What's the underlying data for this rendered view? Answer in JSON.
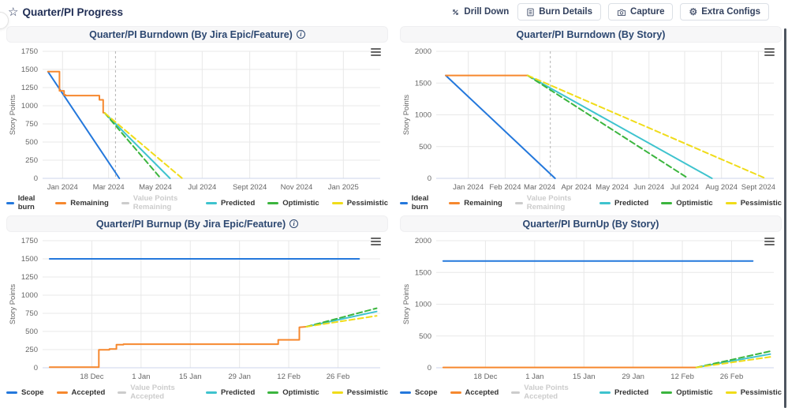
{
  "toolbar": {
    "title": "Quarter/PI Progress",
    "buttons": [
      {
        "label": "Drill Down",
        "icon": "drill-down-icon",
        "bordered": false
      },
      {
        "label": "Burn Details",
        "icon": "burn-details-icon",
        "bordered": true
      },
      {
        "label": "Capture",
        "icon": "camera-icon",
        "bordered": true
      },
      {
        "label": "Extra Configs",
        "icon": "gear-icon",
        "bordered": true
      }
    ]
  },
  "colors": {
    "ideal": "#2478DC",
    "actual": "#F6882E",
    "value_points_disabled": "#CCCCCC",
    "predicted": "#3EC3CE",
    "optimistic": "#3BB53E",
    "pessimistic": "#F0DC19",
    "grid": "#E8E8E8",
    "axis_line": "#CCD6EB",
    "tick_text": "#666666",
    "plotline": "#B3B3B3"
  },
  "chart_data": [
    {
      "type": "line",
      "title": "Quarter/PI Burndown (By Jira Epic/Feature)",
      "has_info": true,
      "ylabel": "Story Points",
      "y_max": 1750,
      "y_ticks": [
        0,
        250,
        500,
        750,
        1000,
        1250,
        1500,
        1750
      ],
      "x_unit": "days since 2023-12-01",
      "x_min": 5,
      "x_max": 445,
      "plotline_x": 100,
      "x_ticks": [
        {
          "x": 31,
          "label": "Jan 2024"
        },
        {
          "x": 91,
          "label": "Mar 2024"
        },
        {
          "x": 152,
          "label": "May 2024"
        },
        {
          "x": 213,
          "label": "Jul 2024"
        },
        {
          "x": 275,
          "label": "Sept 2024"
        },
        {
          "x": 336,
          "label": "Nov 2024"
        },
        {
          "x": 397,
          "label": "Jan 2025"
        }
      ],
      "series": [
        {
          "name": "Ideal burn",
          "color": "#2478DC",
          "dash": "solid",
          "points": [
            [
              12,
              1470
            ],
            [
              105,
              0
            ]
          ]
        },
        {
          "name": "Remaining",
          "color": "#F6882E",
          "dash": "solid",
          "points": [
            [
              12,
              1470
            ],
            [
              27,
              1470
            ],
            [
              27,
              1205
            ],
            [
              33,
              1205
            ],
            [
              33,
              1150
            ],
            [
              35,
              1150
            ],
            [
              35,
              1140
            ],
            [
              79,
              1140
            ],
            [
              79,
              1082
            ],
            [
              84,
              1082
            ],
            [
              84,
              905
            ],
            [
              86,
              900
            ]
          ]
        },
        {
          "name": "Value Points Remaining",
          "color": "#CCCCCC",
          "dash": "solid",
          "disabled": true,
          "points": []
        },
        {
          "name": "Predicted",
          "color": "#3EC3CE",
          "dash": "solid",
          "points": [
            [
              86,
              900
            ],
            [
              171,
              0
            ]
          ]
        },
        {
          "name": "Optimistic",
          "color": "#3BB53E",
          "dash": "dashed",
          "points": [
            [
              86,
              900
            ],
            [
              159,
              0
            ]
          ]
        },
        {
          "name": "Pessimistic",
          "color": "#F0DC19",
          "dash": "dashed",
          "points": [
            [
              86,
              900
            ],
            [
              187,
              0
            ]
          ]
        }
      ]
    },
    {
      "type": "line",
      "title": "Quarter/PI Burndown (By Story)",
      "has_info": false,
      "ylabel": "Story Points",
      "y_max": 2000,
      "y_ticks": [
        0,
        500,
        1000,
        1500,
        2000
      ],
      "x_unit": "days since 2023-12-01",
      "x_min": 4,
      "x_max": 288,
      "plotline_x": 100,
      "x_ticks": [
        {
          "x": 31,
          "label": "Jan 2024"
        },
        {
          "x": 62,
          "label": "Feb 2024"
        },
        {
          "x": 91,
          "label": "Mar 2024"
        },
        {
          "x": 122,
          "label": "Apr 2024"
        },
        {
          "x": 152,
          "label": "May 2024"
        },
        {
          "x": 183,
          "label": "Jun 2024"
        },
        {
          "x": 213,
          "label": "Jul 2024"
        },
        {
          "x": 244,
          "label": "Aug 2024"
        },
        {
          "x": 275,
          "label": "Sept 2024"
        }
      ],
      "series": [
        {
          "name": "Ideal burn",
          "color": "#2478DC",
          "dash": "solid",
          "points": [
            [
              12,
              1620
            ],
            [
              104,
              0
            ]
          ]
        },
        {
          "name": "Remaining",
          "color": "#F6882E",
          "dash": "solid",
          "points": [
            [
              12,
              1620
            ],
            [
              81,
              1620
            ]
          ]
        },
        {
          "name": "Value Points Remaining",
          "color": "#CCCCCC",
          "dash": "solid",
          "disabled": true,
          "points": []
        },
        {
          "name": "Predicted",
          "color": "#3EC3CE",
          "dash": "solid",
          "points": [
            [
              81,
              1620
            ],
            [
              236,
              0
            ]
          ]
        },
        {
          "name": "Optimistic",
          "color": "#3BB53E",
          "dash": "dashed",
          "points": [
            [
              81,
              1620
            ],
            [
              216,
              0
            ]
          ]
        },
        {
          "name": "Pessimistic",
          "color": "#F0DC19",
          "dash": "dashed",
          "points": [
            [
              81,
              1620
            ],
            [
              281,
              0
            ]
          ]
        }
      ]
    },
    {
      "type": "line",
      "title": "Quarter/PI Burnup (By Jira Epic/Feature)",
      "has_info": true,
      "ylabel": "Story Points",
      "y_max": 1750,
      "y_ticks": [
        0,
        250,
        500,
        750,
        1000,
        1250,
        1500,
        1750
      ],
      "x_unit": "days since 2023-12-01",
      "x_min": 3,
      "x_max": 99,
      "plotline_x": null,
      "x_ticks": [
        {
          "x": 17,
          "label": "18 Dec"
        },
        {
          "x": 31,
          "label": "1 Jan"
        },
        {
          "x": 45,
          "label": "15 Jan"
        },
        {
          "x": 59,
          "label": "29 Jan"
        },
        {
          "x": 73,
          "label": "12 Feb"
        },
        {
          "x": 87,
          "label": "26 Feb"
        }
      ],
      "series": [
        {
          "name": "Scope",
          "color": "#2478DC",
          "dash": "solid",
          "points": [
            [
              5,
              1500
            ],
            [
              93,
              1500
            ]
          ]
        },
        {
          "name": "Accepted",
          "color": "#F6882E",
          "dash": "solid",
          "points": [
            [
              5,
              8
            ],
            [
              19,
              8
            ],
            [
              19,
              248
            ],
            [
              22,
              248
            ],
            [
              22,
              258
            ],
            [
              24,
              258
            ],
            [
              24,
              318
            ],
            [
              26,
              318
            ],
            [
              26,
              325
            ],
            [
              70,
              325
            ],
            [
              70,
              385
            ],
            [
              76,
              385
            ],
            [
              76,
              558
            ],
            [
              78,
              565
            ]
          ]
        },
        {
          "name": "Value Points Accepted",
          "color": "#CCCCCC",
          "dash": "solid",
          "disabled": true,
          "points": []
        },
        {
          "name": "Predicted",
          "color": "#3EC3CE",
          "dash": "solid",
          "points": [
            [
              78,
              565
            ],
            [
              98,
              775
            ]
          ]
        },
        {
          "name": "Optimistic",
          "color": "#3BB53E",
          "dash": "dashed",
          "points": [
            [
              78,
              565
            ],
            [
              98,
              820
            ]
          ]
        },
        {
          "name": "Pessimistic",
          "color": "#F0DC19",
          "dash": "dashed",
          "points": [
            [
              78,
              565
            ],
            [
              98,
              715
            ]
          ]
        }
      ]
    },
    {
      "type": "line",
      "title": "Quarter/PI BurnUp (By Story)",
      "has_info": false,
      "ylabel": "Story Points",
      "y_max": 2000,
      "y_ticks": [
        0,
        500,
        1000,
        1500,
        2000
      ],
      "x_unit": "days since 2023-12-01",
      "x_min": 3,
      "x_max": 99,
      "plotline_x": null,
      "x_ticks": [
        {
          "x": 17,
          "label": "18 Dec"
        },
        {
          "x": 31,
          "label": "1 Jan"
        },
        {
          "x": 45,
          "label": "15 Jan"
        },
        {
          "x": 59,
          "label": "29 Jan"
        },
        {
          "x": 73,
          "label": "12 Feb"
        },
        {
          "x": 87,
          "label": "26 Feb"
        }
      ],
      "series": [
        {
          "name": "Scope",
          "color": "#2478DC",
          "dash": "solid",
          "points": [
            [
              5,
              1680
            ],
            [
              93,
              1680
            ]
          ]
        },
        {
          "name": "Accepted",
          "color": "#F6882E",
          "dash": "solid",
          "points": [
            [
              5,
              5
            ],
            [
              77,
              5
            ]
          ]
        },
        {
          "name": "Value Points Accepted",
          "color": "#CCCCCC",
          "dash": "solid",
          "disabled": true,
          "points": []
        },
        {
          "name": "Predicted",
          "color": "#3EC3CE",
          "dash": "solid",
          "points": [
            [
              77,
              5
            ],
            [
              98,
              215
            ]
          ]
        },
        {
          "name": "Optimistic",
          "color": "#3BB53E",
          "dash": "dashed",
          "points": [
            [
              77,
              5
            ],
            [
              98,
              260
            ]
          ]
        },
        {
          "name": "Pessimistic",
          "color": "#F0DC19",
          "dash": "dashed",
          "points": [
            [
              77,
              5
            ],
            [
              98,
              170
            ]
          ]
        }
      ]
    }
  ]
}
